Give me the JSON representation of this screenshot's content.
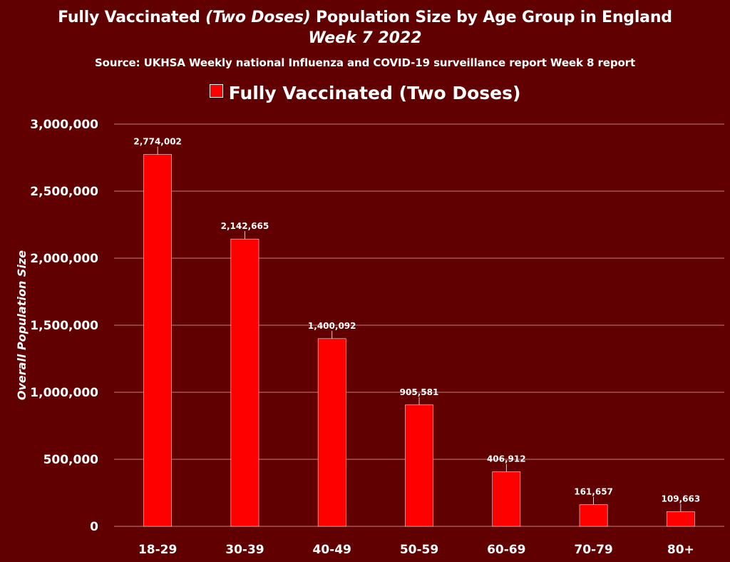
{
  "chart_data": {
    "type": "bar",
    "title_part1": "Fully Vaccinated ",
    "title_italic": "(Two Doses)",
    "title_part2": " Population Size by Age Group in England",
    "subtitle": "Week 7 2022",
    "source": "Source: UKHSA Weekly national Influenza and COVID-19 surveillance report Week 8 report",
    "xlabel": "",
    "ylabel": "Overall Population Size",
    "categories": [
      "18-29",
      "30-39",
      "40-49",
      "50-59",
      "60-69",
      "70-79",
      "80+"
    ],
    "series": [
      {
        "name": "Fully Vaccinated (Two Doses)",
        "values": [
          2774002,
          2142665,
          1400092,
          905581,
          406912,
          161657,
          109663
        ],
        "color": "#ff0000"
      }
    ],
    "data_labels": [
      "2,774,002",
      "2,142,665",
      "1,400,092",
      "905,581",
      "406,912",
      "161,657",
      "109,663"
    ],
    "yticks": [
      0,
      500000,
      1000000,
      1500000,
      2000000,
      2500000,
      3000000
    ],
    "ytick_labels": [
      "0",
      "500,000",
      "1,000,000",
      "1,500,000",
      "2,000,000",
      "2,500,000",
      "3,000,000"
    ],
    "ylim": [
      0,
      3000000
    ],
    "grid": true,
    "legend_position": "top",
    "background_color": "#600000",
    "gridline_color": "#c08080"
  }
}
